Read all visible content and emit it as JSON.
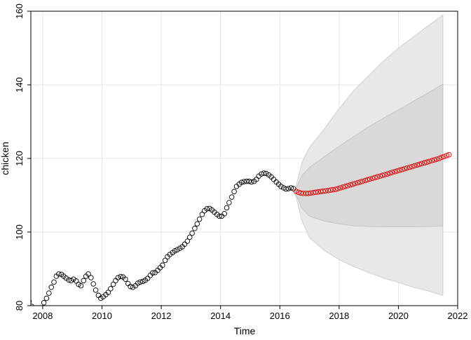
{
  "chart_data": {
    "type": "line",
    "title": "",
    "xlabel": "Time",
    "ylabel": "chicken",
    "xlim": [
      2007.6,
      2022.0
    ],
    "ylim": [
      80,
      160
    ],
    "xticks": [
      2008,
      2010,
      2012,
      2014,
      2016,
      2018,
      2020,
      2022
    ],
    "yticks": [
      80,
      100,
      120,
      140,
      160
    ],
    "grid": true,
    "legend": "none",
    "colors": {
      "observed": "#000000",
      "forecast": "#e00000",
      "band95": "#e8e8e8",
      "band80": "#d9d9d9",
      "grid": "#e6e6e6"
    },
    "series": [
      {
        "role": "observed",
        "points": [
          [
            2007.54,
            81.2
          ],
          [
            2007.63,
            79.8
          ],
          [
            2007.71,
            78.9
          ],
          [
            2007.79,
            78.4
          ],
          [
            2007.88,
            78.5
          ],
          [
            2007.96,
            79.4
          ],
          [
            2008.04,
            80.8
          ],
          [
            2008.13,
            82.0
          ],
          [
            2008.21,
            83.4
          ],
          [
            2008.29,
            85.0
          ],
          [
            2008.38,
            86.4
          ],
          [
            2008.46,
            88.0
          ],
          [
            2008.54,
            88.6
          ],
          [
            2008.63,
            88.5
          ],
          [
            2008.71,
            88.0
          ],
          [
            2008.79,
            87.5
          ],
          [
            2008.88,
            87.0
          ],
          [
            2008.96,
            86.8
          ],
          [
            2009.04,
            87.2
          ],
          [
            2009.13,
            86.7
          ],
          [
            2009.21,
            85.8
          ],
          [
            2009.29,
            85.4
          ],
          [
            2009.38,
            86.8
          ],
          [
            2009.46,
            88.0
          ],
          [
            2009.54,
            88.6
          ],
          [
            2009.63,
            87.6
          ],
          [
            2009.71,
            85.9
          ],
          [
            2009.79,
            84.2
          ],
          [
            2009.88,
            82.8
          ],
          [
            2009.96,
            82.0
          ],
          [
            2010.04,
            82.4
          ],
          [
            2010.13,
            83.0
          ],
          [
            2010.21,
            83.6
          ],
          [
            2010.29,
            84.6
          ],
          [
            2010.38,
            85.8
          ],
          [
            2010.46,
            86.8
          ],
          [
            2010.54,
            87.6
          ],
          [
            2010.63,
            87.9
          ],
          [
            2010.71,
            87.8
          ],
          [
            2010.79,
            87.2
          ],
          [
            2010.88,
            86.0
          ],
          [
            2010.96,
            85.2
          ],
          [
            2011.04,
            85.0
          ],
          [
            2011.13,
            85.4
          ],
          [
            2011.21,
            86.1
          ],
          [
            2011.29,
            86.4
          ],
          [
            2011.38,
            86.6
          ],
          [
            2011.46,
            86.9
          ],
          [
            2011.54,
            87.4
          ],
          [
            2011.63,
            88.2
          ],
          [
            2011.71,
            88.9
          ],
          [
            2011.79,
            89.0
          ],
          [
            2011.88,
            89.6
          ],
          [
            2011.96,
            90.3
          ],
          [
            2012.04,
            91.0
          ],
          [
            2012.13,
            92.3
          ],
          [
            2012.21,
            93.3
          ],
          [
            2012.29,
            93.9
          ],
          [
            2012.38,
            94.4
          ],
          [
            2012.46,
            94.9
          ],
          [
            2012.54,
            95.2
          ],
          [
            2012.63,
            95.6
          ],
          [
            2012.71,
            96.0
          ],
          [
            2012.79,
            96.7
          ],
          [
            2012.88,
            97.5
          ],
          [
            2012.96,
            98.6
          ],
          [
            2013.04,
            99.7
          ],
          [
            2013.13,
            101.0
          ],
          [
            2013.21,
            102.2
          ],
          [
            2013.29,
            103.5
          ],
          [
            2013.38,
            104.8
          ],
          [
            2013.46,
            105.8
          ],
          [
            2013.54,
            106.3
          ],
          [
            2013.63,
            106.4
          ],
          [
            2013.71,
            106.0
          ],
          [
            2013.79,
            105.4
          ],
          [
            2013.88,
            104.8
          ],
          [
            2013.96,
            104.3
          ],
          [
            2014.04,
            104.3
          ],
          [
            2014.13,
            105.0
          ],
          [
            2014.21,
            106.6
          ],
          [
            2014.29,
            108.0
          ],
          [
            2014.38,
            109.5
          ],
          [
            2014.46,
            111.0
          ],
          [
            2014.54,
            112.4
          ],
          [
            2014.63,
            113.0
          ],
          [
            2014.71,
            113.5
          ],
          [
            2014.79,
            113.7
          ],
          [
            2014.88,
            113.8
          ],
          [
            2014.96,
            113.8
          ],
          [
            2015.04,
            113.6
          ],
          [
            2015.13,
            113.8
          ],
          [
            2015.21,
            114.3
          ],
          [
            2015.29,
            115.2
          ],
          [
            2015.38,
            115.8
          ],
          [
            2015.46,
            116.0
          ],
          [
            2015.54,
            115.9
          ],
          [
            2015.63,
            115.5
          ],
          [
            2015.71,
            115.0
          ],
          [
            2015.79,
            114.3
          ],
          [
            2015.88,
            113.6
          ],
          [
            2015.96,
            113.0
          ],
          [
            2016.04,
            112.4
          ],
          [
            2016.13,
            112.0
          ],
          [
            2016.21,
            111.7
          ],
          [
            2016.29,
            111.8
          ],
          [
            2016.38,
            112.0
          ],
          [
            2016.46,
            111.8
          ]
        ]
      },
      {
        "role": "forecast",
        "points": [
          [
            2016.54,
            111.1
          ],
          [
            2016.63,
            110.8
          ],
          [
            2016.71,
            110.6
          ],
          [
            2016.79,
            110.5
          ],
          [
            2016.88,
            110.5
          ],
          [
            2016.96,
            110.5
          ],
          [
            2017.04,
            110.6
          ],
          [
            2017.13,
            110.7
          ],
          [
            2017.21,
            110.8
          ],
          [
            2017.29,
            110.9
          ],
          [
            2017.38,
            111.0
          ],
          [
            2017.46,
            111.1
          ],
          [
            2017.54,
            111.2
          ],
          [
            2017.63,
            111.3
          ],
          [
            2017.71,
            111.4
          ],
          [
            2017.79,
            111.5
          ],
          [
            2017.88,
            111.6
          ],
          [
            2017.96,
            111.8
          ],
          [
            2018.04,
            112.0
          ],
          [
            2018.13,
            112.2
          ],
          [
            2018.21,
            112.4
          ],
          [
            2018.29,
            112.6
          ],
          [
            2018.38,
            112.8
          ],
          [
            2018.46,
            113.0
          ],
          [
            2018.54,
            113.2
          ],
          [
            2018.63,
            113.4
          ],
          [
            2018.71,
            113.6
          ],
          [
            2018.79,
            113.8
          ],
          [
            2018.88,
            114.0
          ],
          [
            2018.96,
            114.2
          ],
          [
            2019.04,
            114.4
          ],
          [
            2019.13,
            114.6
          ],
          [
            2019.21,
            114.8
          ],
          [
            2019.29,
            115.0
          ],
          [
            2019.38,
            115.2
          ],
          [
            2019.46,
            115.4
          ],
          [
            2019.54,
            115.6
          ],
          [
            2019.63,
            115.8
          ],
          [
            2019.71,
            116.0
          ],
          [
            2019.79,
            116.2
          ],
          [
            2019.88,
            116.4
          ],
          [
            2019.96,
            116.6
          ],
          [
            2020.04,
            116.8
          ],
          [
            2020.13,
            117.0
          ],
          [
            2020.21,
            117.2
          ],
          [
            2020.29,
            117.4
          ],
          [
            2020.38,
            117.6
          ],
          [
            2020.46,
            117.8
          ],
          [
            2020.54,
            118.0
          ],
          [
            2020.63,
            118.2
          ],
          [
            2020.71,
            118.4
          ],
          [
            2020.79,
            118.6
          ],
          [
            2020.88,
            118.8
          ],
          [
            2020.96,
            119.0
          ],
          [
            2021.04,
            119.2
          ],
          [
            2021.13,
            119.4
          ],
          [
            2021.21,
            119.6
          ],
          [
            2021.29,
            119.8
          ],
          [
            2021.38,
            120.0
          ],
          [
            2021.46,
            120.3
          ],
          [
            2021.54,
            120.5
          ],
          [
            2021.63,
            120.8
          ],
          [
            2021.71,
            121.0
          ]
        ]
      }
    ],
    "intervals": {
      "x": [
        2016.5,
        2016.75,
        2017.0,
        2017.5,
        2018.0,
        2018.5,
        2019.0,
        2019.5,
        2020.0,
        2020.5,
        2021.0,
        2021.5
      ],
      "lower80": [
        111.0,
        106.4,
        104.3,
        103.0,
        102.2,
        101.7,
        101.5,
        101.4,
        101.4,
        101.4,
        101.5,
        101.6
      ],
      "upper80": [
        111.0,
        115.5,
        117.5,
        120.5,
        123.3,
        126.0,
        128.6,
        131.0,
        133.2,
        135.5,
        137.8,
        140.2
      ],
      "lower95": [
        111.0,
        103.0,
        98.5,
        95.0,
        92.5,
        90.6,
        89.0,
        87.5,
        86.3,
        85.0,
        84.0,
        82.8
      ],
      "upper95": [
        111.0,
        119.0,
        123.0,
        128.0,
        133.5,
        138.5,
        142.5,
        146.5,
        150.0,
        153.0,
        156.0,
        159.0
      ]
    }
  }
}
